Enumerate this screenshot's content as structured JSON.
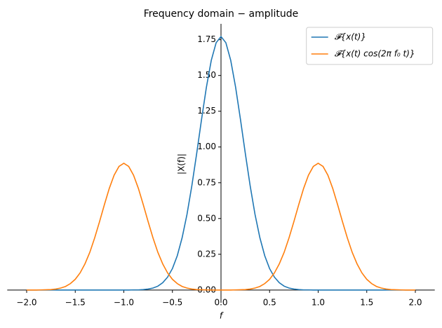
{
  "chart_data": {
    "type": "line",
    "title": "Frequency domain − amplitude",
    "xlabel": "f",
    "ylabel": "|X(f)|",
    "x": [
      -2,
      -1.95,
      -1.9,
      -1.85,
      -1.8,
      -1.75,
      -1.7,
      -1.65,
      -1.6,
      -1.55,
      -1.5,
      -1.45,
      -1.4,
      -1.35,
      -1.3,
      -1.25,
      -1.2,
      -1.15,
      -1.1,
      -1.05,
      -1,
      -0.95,
      -0.9,
      -0.85,
      -0.8,
      -0.75,
      -0.7,
      -0.65,
      -0.6,
      -0.55,
      -0.5,
      -0.45,
      -0.4,
      -0.35,
      -0.3,
      -0.25,
      -0.2,
      -0.15,
      -0.1,
      -0.05,
      0,
      0.05,
      0.1,
      0.15,
      0.2,
      0.25,
      0.3,
      0.35,
      0.4,
      0.45,
      0.5,
      0.55,
      0.6,
      0.65,
      0.7,
      0.75,
      0.8,
      0.85,
      0.9,
      0.95,
      1,
      1.05,
      1.1,
      1.15,
      1.2,
      1.25,
      1.3,
      1.35,
      1.4,
      1.45,
      1.5,
      1.55,
      1.6,
      1.65,
      1.7,
      1.75,
      1.8,
      1.85,
      1.9,
      1.95,
      2
    ],
    "series": [
      {
        "name": "𝓕{x(t)}",
        "color": "#1f77b4",
        "values": [
          0,
          0,
          0,
          0,
          0,
          0,
          0,
          0,
          0,
          0,
          0,
          0,
          0,
          0,
          0,
          0,
          0,
          0,
          0,
          0,
          0,
          0,
          0.001,
          0.001,
          0.003,
          0.007,
          0.014,
          0.027,
          0.051,
          0.09,
          0.15,
          0.24,
          0.366,
          0.529,
          0.729,
          0.956,
          1.194,
          1.419,
          1.606,
          1.729,
          1.772,
          1.729,
          1.606,
          1.419,
          1.194,
          0.956,
          0.729,
          0.529,
          0.366,
          0.24,
          0.15,
          0.09,
          0.051,
          0.027,
          0.014,
          0.007,
          0.003,
          0.001,
          0.001,
          0,
          0,
          0,
          0,
          0,
          0,
          0,
          0,
          0,
          0,
          0,
          0,
          0,
          0,
          0,
          0,
          0,
          0,
          0,
          0,
          0,
          0
        ]
      },
      {
        "name": "𝓕{x(t) cos(2π f₀ t)}",
        "color": "#ff7f0e",
        "values": [
          0,
          0,
          0,
          0.001,
          0.002,
          0.003,
          0.007,
          0.014,
          0.025,
          0.045,
          0.075,
          0.12,
          0.183,
          0.264,
          0.365,
          0.478,
          0.597,
          0.71,
          0.803,
          0.864,
          0.886,
          0.864,
          0.803,
          0.71,
          0.597,
          0.478,
          0.365,
          0.264,
          0.183,
          0.12,
          0.075,
          0.045,
          0.025,
          0.014,
          0.007,
          0.003,
          0.002,
          0.001,
          0,
          0,
          0,
          0,
          0,
          0.001,
          0.002,
          0.003,
          0.007,
          0.014,
          0.025,
          0.045,
          0.075,
          0.12,
          0.183,
          0.264,
          0.365,
          0.478,
          0.597,
          0.71,
          0.803,
          0.864,
          0.886,
          0.864,
          0.803,
          0.71,
          0.597,
          0.478,
          0.365,
          0.264,
          0.183,
          0.12,
          0.075,
          0.045,
          0.025,
          0.014,
          0.007,
          0.003,
          0.002,
          0.001,
          0,
          0,
          0
        ]
      }
    ],
    "xlim": [
      -2.2,
      2.2
    ],
    "ylim": [
      -0.089,
      1.861
    ],
    "xticks": [
      {
        "value": -2,
        "label": "−2.0"
      },
      {
        "value": -1.5,
        "label": "−1.5"
      },
      {
        "value": -1,
        "label": "−1.0"
      },
      {
        "value": -0.5,
        "label": "−0.5"
      },
      {
        "value": 0,
        "label": "0.0"
      },
      {
        "value": 0.5,
        "label": "0.5"
      },
      {
        "value": 1,
        "label": "1.0"
      },
      {
        "value": 1.5,
        "label": "1.5"
      },
      {
        "value": 2,
        "label": "2.0"
      }
    ],
    "yticks": [
      {
        "value": 0,
        "label": "0.00"
      },
      {
        "value": 0.25,
        "label": "0.25"
      },
      {
        "value": 0.5,
        "label": "0.50"
      },
      {
        "value": 0.75,
        "label": "0.75"
      },
      {
        "value": 1,
        "label": "1.00"
      },
      {
        "value": 1.25,
        "label": "1.25"
      },
      {
        "value": 1.5,
        "label": "1.50"
      },
      {
        "value": 1.75,
        "label": "1.75"
      }
    ],
    "legend": "upper right"
  }
}
